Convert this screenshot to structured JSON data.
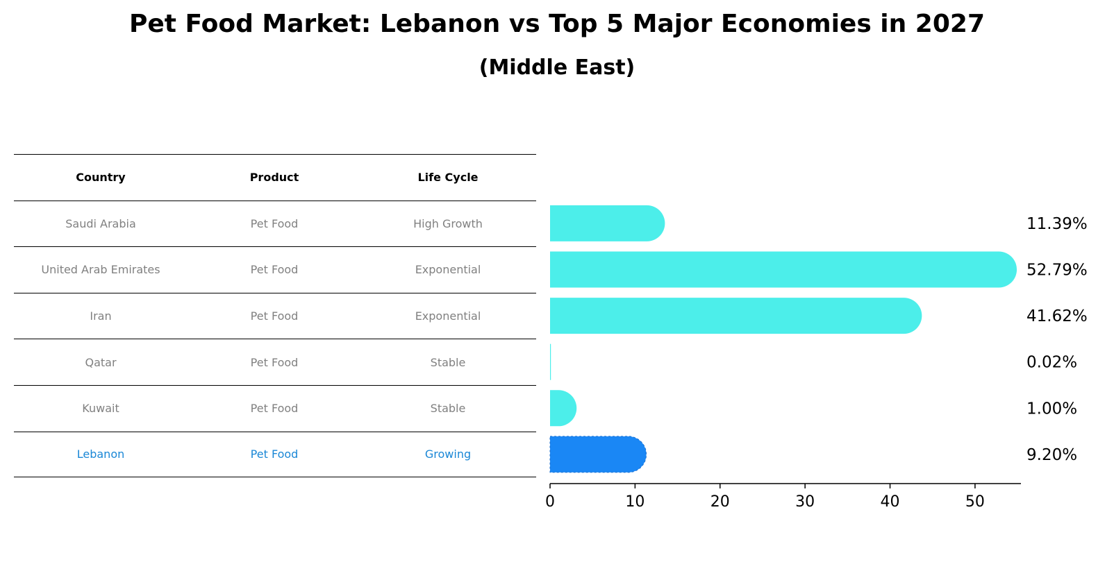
{
  "title": "Pet Food Market: Lebanon vs Top 5 Major Economies in 2027",
  "subtitle": "(Middle East)",
  "table": {
    "headers": [
      "Country",
      "Product",
      "Life Cycle"
    ],
    "rows": [
      [
        "Saudi Arabia",
        "Pet Food",
        "High Growth"
      ],
      [
        "United Arab Emirates",
        "Pet Food",
        "Exponential"
      ],
      [
        "Iran",
        "Pet Food",
        "Exponential"
      ],
      [
        "Qatar",
        "Pet Food",
        "Stable"
      ],
      [
        "Kuwait",
        "Pet Food",
        "Stable"
      ],
      [
        "Lebanon",
        "Pet Food",
        "Growing"
      ]
    ]
  },
  "chart_data": {
    "type": "bar",
    "orientation": "horizontal",
    "categories": [
      "Saudi Arabia",
      "United Arab Emirates",
      "Iran",
      "Qatar",
      "Kuwait",
      "Lebanon"
    ],
    "values": [
      11.39,
      52.79,
      41.62,
      0.02,
      1.0,
      9.2
    ],
    "value_labels": [
      "11.39%",
      "52.79%",
      "41.62%",
      "0.02%",
      "1.00%",
      "9.20%"
    ],
    "highlight": "Lebanon",
    "xticks": [
      "0",
      "10",
      "20",
      "30",
      "40",
      "50"
    ],
    "xlim": [
      0,
      55.4
    ],
    "colors": {
      "default": "#4ceeea",
      "highlight": "#1a87f5"
    },
    "grid": false
  }
}
